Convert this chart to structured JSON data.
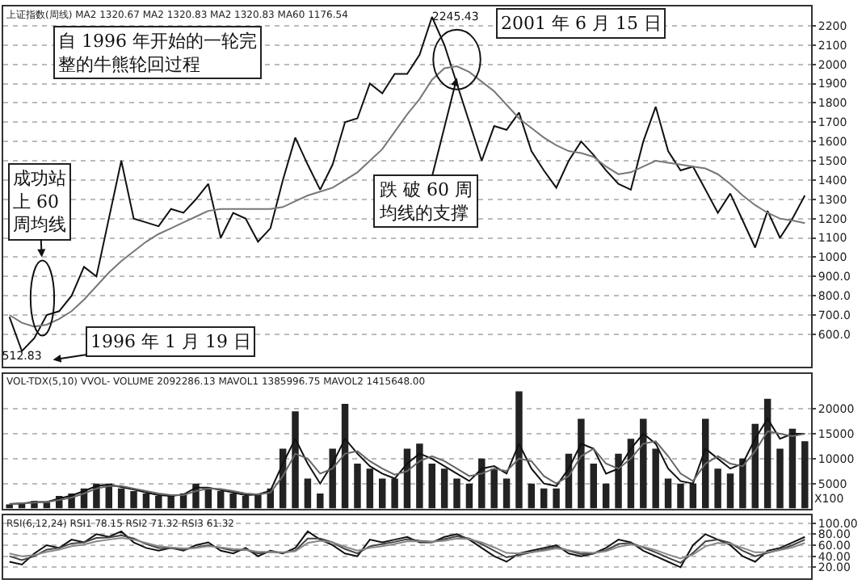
{
  "chart_data": [
    {
      "type": "line",
      "title": "上证指数(周线) MA2 1320.67 MA2 1320.83 MA2 1320.83 MA60 1176.54",
      "categories": [
        null,
        null,
        null,
        null,
        null,
        null,
        null,
        null,
        null,
        null,
        null,
        null,
        null,
        null,
        null,
        null,
        null,
        null,
        null,
        null,
        null,
        null,
        null,
        null,
        null,
        null,
        null,
        null,
        null,
        null,
        null,
        null,
        null,
        null,
        null,
        null,
        null,
        null,
        null,
        null,
        null,
        null,
        null,
        null,
        null,
        null,
        null,
        null,
        null,
        null,
        null,
        null,
        null,
        null,
        null,
        null,
        null,
        null,
        null,
        null,
        null,
        null,
        null,
        null,
        null
      ],
      "series": [
        {
          "color": "#111111",
          "values": [
            690,
            512.83,
            580,
            700,
            720,
            800,
            950,
            900,
            1200,
            1500,
            1200,
            1180,
            1160,
            1250,
            1230,
            1300,
            1380,
            1100,
            1230,
            1200,
            1080,
            1150,
            1400,
            1620,
            1480,
            1350,
            1480,
            1700,
            1720,
            1900,
            1850,
            1950,
            1950,
            2050,
            2245.43,
            2100,
            1900,
            1700,
            1500,
            1680,
            1660,
            1750,
            1550,
            1450,
            1360,
            1500,
            1600,
            1530,
            1450,
            1380,
            1350,
            1600,
            1780,
            1550,
            1450,
            1470,
            1350,
            1230,
            1330,
            1190,
            1050,
            1240,
            1100,
            1200,
            1320
          ],
          "value_labels": [
            null,
            "512.83",
            null,
            null,
            null,
            null,
            null,
            null,
            null,
            null,
            null,
            null,
            null,
            null,
            null,
            null,
            null,
            null,
            null,
            null,
            null,
            null,
            null,
            null,
            null,
            null,
            null,
            null,
            null,
            null,
            null,
            null,
            null,
            null,
            "2245.43",
            null,
            null,
            null,
            null,
            null,
            null,
            null,
            null,
            null,
            null,
            null,
            null,
            null,
            null,
            null,
            null,
            null,
            null,
            null,
            null,
            null,
            null,
            null,
            null,
            null,
            null,
            null,
            null,
            null,
            null
          ]
        },
        {
          "color": "#777777",
          "values": [
            700,
            660,
            640,
            650,
            680,
            720,
            780,
            850,
            920,
            980,
            1030,
            1080,
            1120,
            1150,
            1180,
            1210,
            1240,
            1250,
            1250,
            1250,
            1250,
            1250,
            1260,
            1290,
            1320,
            1340,
            1360,
            1400,
            1440,
            1500,
            1560,
            1650,
            1740,
            1820,
            1920,
            1980,
            1990,
            1960,
            1910,
            1860,
            1790,
            1720,
            1670,
            1620,
            1580,
            1550,
            1540,
            1520,
            1470,
            1430,
            1440,
            1470,
            1500,
            1490,
            1480,
            1470,
            1460,
            1430,
            1380,
            1320,
            1270,
            1230,
            1200,
            1190,
            1176.54
          ]
        }
      ],
      "ylim": [
        430,
        2300
      ],
      "yticks": [
        {
          "value": 600,
          "label": "600.0"
        },
        {
          "value": 700,
          "label": "700.0"
        },
        {
          "value": 800,
          "label": "800.0"
        },
        {
          "value": 900,
          "label": "900.0"
        },
        1000,
        1100,
        1200,
        1300,
        1400,
        1500,
        1600,
        1700,
        1800,
        1900,
        2000,
        2100,
        2200
      ],
      "grid": "y",
      "tick_labels": "y",
      "annotations": [
        "自 1996 年开始的一轮完整的牛熊轮回过程",
        "成功站上 60 周均线",
        "1996 年 1 月 19 日",
        "2001 年 6 月 15 日",
        "跌 破 60 周均线的支撑"
      ]
    },
    {
      "type": "bar",
      "title": "VOL-TDX(5,10) VVOL- VOLUME 2092286.13 MAVOL1 1385996.75 MAVOL2 1415648.00",
      "categories": [
        null,
        null,
        null,
        null,
        null,
        null,
        null,
        null,
        null,
        null,
        null,
        null,
        null,
        null,
        null,
        null,
        null,
        null,
        null,
        null,
        null,
        null,
        null,
        null,
        null,
        null,
        null,
        null,
        null,
        null,
        null,
        null,
        null,
        null,
        null,
        null,
        null,
        null,
        null,
        null,
        null,
        null,
        null,
        null,
        null,
        null,
        null,
        null,
        null,
        null,
        null,
        null,
        null,
        null,
        null,
        null,
        null,
        null,
        null,
        null,
        null,
        null,
        null,
        null,
        null
      ],
      "series": [
        {
          "type": "bar",
          "color": "#222222",
          "values": [
            800,
            1000,
            1500,
            1200,
            2500,
            3000,
            4000,
            5000,
            5000,
            4000,
            3500,
            3000,
            2500,
            2500,
            3000,
            5000,
            4000,
            3500,
            3000,
            2500,
            3000,
            4000,
            12000,
            19500,
            6000,
            3000,
            12000,
            21000,
            9000,
            8000,
            6000,
            6000,
            12000,
            13000,
            9000,
            8000,
            6000,
            5000,
            10000,
            8000,
            6000,
            23500,
            5000,
            4000,
            4000,
            11000,
            18000,
            9000,
            5000,
            11000,
            14000,
            18000,
            12000,
            6000,
            5000,
            5000,
            18000,
            8000,
            7000,
            10000,
            17000,
            22000,
            12000,
            16000,
            13500
          ]
        },
        {
          "type": "line",
          "color": "#111111",
          "values": [
            900,
            1000,
            1300,
            1300,
            2000,
            2600,
            3500,
            4500,
            4800,
            4300,
            3800,
            3200,
            2700,
            2500,
            2800,
            4200,
            4200,
            3700,
            3200,
            2700,
            2800,
            3600,
            9000,
            14000,
            9000,
            5000,
            9000,
            14000,
            11000,
            8500,
            7000,
            6000,
            9000,
            11000,
            10000,
            8500,
            7000,
            5500,
            8000,
            8500,
            7000,
            13000,
            8000,
            5000,
            4500,
            8000,
            13000,
            12000,
            7000,
            8000,
            12000,
            15000,
            13000,
            8000,
            5500,
            5000,
            12000,
            10000,
            8000,
            9000,
            14000,
            18000,
            14000,
            15000,
            15000
          ]
        },
        {
          "type": "line",
          "color": "#666666",
          "values": [
            900,
            1000,
            1200,
            1300,
            1700,
            2200,
            3000,
            4000,
            4500,
            4500,
            4000,
            3500,
            3000,
            2700,
            2700,
            3500,
            4000,
            3900,
            3500,
            3000,
            2800,
            3200,
            6500,
            11000,
            10000,
            7000,
            8000,
            11000,
            11500,
            9500,
            8000,
            6800,
            7500,
            9500,
            10500,
            9500,
            8000,
            6500,
            7000,
            8000,
            7500,
            10000,
            9500,
            6500,
            5000,
            6500,
            10500,
            12000,
            9000,
            8000,
            10000,
            13000,
            13500,
            10500,
            7000,
            5500,
            9000,
            10500,
            9000,
            8500,
            11500,
            15500,
            15000,
            14500,
            15000
          ]
        }
      ],
      "ylim": [
        0,
        27000
      ],
      "yticks": [
        5000,
        10000,
        15000,
        20000
      ],
      "grid": "y",
      "tick_labels": "y",
      "annotations": [
        "X100"
      ]
    },
    {
      "type": "line",
      "title": "RSI(6,12,24) RSI1 78.15 RSI2 71.32 RSI3 61.32",
      "categories": [
        null,
        null,
        null,
        null,
        null,
        null,
        null,
        null,
        null,
        null,
        null,
        null,
        null,
        null,
        null,
        null,
        null,
        null,
        null,
        null,
        null,
        null,
        null,
        null,
        null,
        null,
        null,
        null,
        null,
        null,
        null,
        null,
        null,
        null,
        null,
        null,
        null,
        null,
        null,
        null,
        null,
        null,
        null,
        null,
        null,
        null,
        null,
        null,
        null,
        null,
        null,
        null,
        null,
        null,
        null,
        null,
        null,
        null,
        null,
        null,
        null,
        null,
        null,
        null,
        null
      ],
      "series": [
        {
          "color": "#111111",
          "values": [
            30,
            25,
            45,
            60,
            55,
            70,
            65,
            80,
            75,
            85,
            65,
            55,
            50,
            55,
            50,
            60,
            65,
            50,
            45,
            55,
            40,
            50,
            45,
            55,
            85,
            70,
            60,
            45,
            40,
            70,
            65,
            70,
            75,
            65,
            65,
            75,
            80,
            70,
            55,
            40,
            30,
            45,
            50,
            55,
            60,
            45,
            40,
            45,
            55,
            70,
            65,
            50,
            40,
            30,
            20,
            60,
            80,
            70,
            60,
            40,
            30,
            50,
            55,
            65,
            75
          ]
        },
        {
          "color": "#444444",
          "values": [
            40,
            33,
            40,
            52,
            55,
            63,
            65,
            73,
            74,
            78,
            72,
            62,
            55,
            55,
            52,
            56,
            60,
            55,
            50,
            52,
            45,
            48,
            46,
            50,
            72,
            72,
            65,
            53,
            45,
            58,
            62,
            66,
            71,
            68,
            66,
            71,
            76,
            72,
            62,
            50,
            38,
            42,
            47,
            52,
            57,
            50,
            44,
            45,
            51,
            62,
            64,
            56,
            47,
            37,
            28,
            46,
            67,
            70,
            64,
            50,
            40,
            46,
            52,
            60,
            70
          ]
        },
        {
          "color": "#888888",
          "values": [
            45,
            40,
            42,
            48,
            52,
            58,
            61,
            67,
            70,
            73,
            70,
            64,
            58,
            56,
            54,
            55,
            58,
            56,
            53,
            52,
            48,
            48,
            47,
            49,
            64,
            68,
            65,
            57,
            50,
            55,
            58,
            62,
            67,
            67,
            66,
            68,
            72,
            71,
            65,
            56,
            46,
            45,
            47,
            50,
            54,
            51,
            47,
            46,
            49,
            57,
            61,
            57,
            51,
            43,
            36,
            43,
            58,
            64,
            63,
            55,
            47,
            47,
            51,
            56,
            64
          ]
        }
      ],
      "ylim": [
        0,
        114
      ],
      "yticks": [
        {
          "value": 20,
          "label": "20.00"
        },
        {
          "value": 40,
          "label": "40.00"
        },
        {
          "value": 60,
          "label": "60.00"
        },
        {
          "value": 80,
          "label": "80.00"
        },
        {
          "value": 100,
          "label": "100.00"
        }
      ],
      "grid": "y",
      "tick_labels": "y"
    }
  ]
}
